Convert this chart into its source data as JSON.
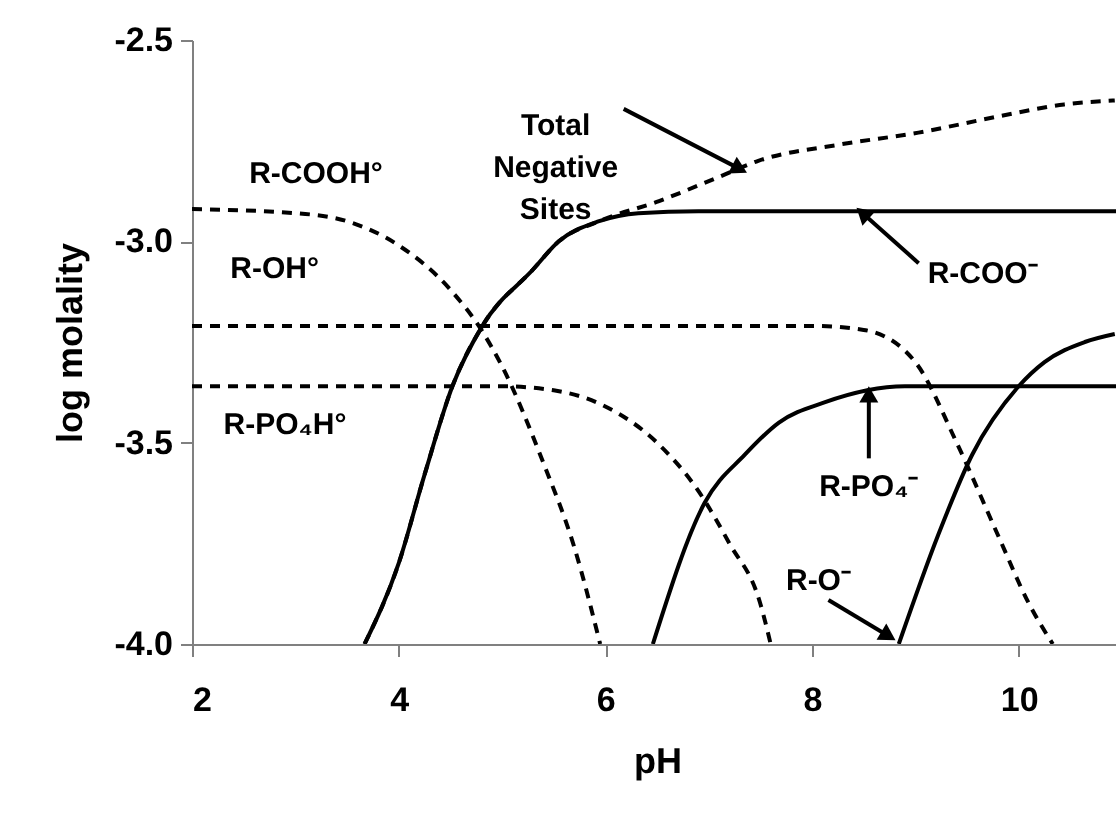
{
  "chart_data": {
    "type": "line",
    "xlabel": "pH",
    "ylabel": "log  molality",
    "xlim": [
      2,
      11
    ],
    "xticks": [
      2,
      4,
      6,
      8,
      10
    ],
    "ylim": [
      -4.0,
      -2.5
    ],
    "yticks": [
      {
        "value": -4,
        "label": "-4.0"
      },
      -3.5,
      {
        "value": -3,
        "label": "-3.0"
      },
      -2.5
    ],
    "grid": false,
    "marker": "none",
    "series": [
      {
        "color": "#000000",
        "line_style": "dashed",
        "x": [
          2,
          3,
          3.5,
          4,
          4.5,
          4.8,
          5.0,
          5.4,
          5.7,
          5.95
        ],
        "values": [
          -2.92,
          -2.93,
          -2.95,
          -3.01,
          -3.12,
          -3.22,
          -3.31,
          -3.55,
          -3.76,
          -4.0
        ]
      },
      {
        "color": "#000000",
        "line_style": "dashed",
        "x": [
          2,
          8,
          8.5,
          9.0,
          9.4,
          9.8,
          10.1,
          10.33
        ],
        "values": [
          -3.21,
          -3.21,
          -3.22,
          -3.3,
          -3.5,
          -3.73,
          -3.9,
          -4.0
        ]
      },
      {
        "color": "#000000",
        "line_style": "dashed",
        "x": [
          2,
          5,
          5.5,
          6,
          6.5,
          6.9,
          7.2,
          7.5,
          7.6
        ],
        "values": [
          -3.36,
          -3.36,
          -3.37,
          -3.41,
          -3.5,
          -3.62,
          -3.75,
          -3.9,
          -4.0
        ]
      },
      {
        "color": "#000000",
        "line_style": "solid",
        "x": [
          3.67,
          4.0,
          4.25,
          4.52,
          4.81,
          5.3,
          5.55,
          5.94,
          6.32,
          6.9,
          11
        ],
        "values": [
          -4.0,
          -3.8,
          -3.58,
          -3.36,
          -3.21,
          -3.07,
          -3.0,
          -2.95,
          -2.93,
          -2.925,
          -2.925
        ]
      },
      {
        "color": "#000000",
        "line_style": "dashed",
        "x": [
          3.67,
          4.0,
          4.25,
          4.52,
          4.81,
          5.3,
          5.55,
          5.94,
          6.52,
          7.1,
          7.48,
          8.26,
          9.03,
          9.8,
          10.44,
          10.93
        ],
        "values": [
          -4.0,
          -3.8,
          -3.58,
          -3.36,
          -3.21,
          -3.07,
          -3.0,
          -2.95,
          -2.9,
          -2.84,
          -2.8,
          -2.76,
          -2.73,
          -2.69,
          -2.66,
          -2.65
        ]
      },
      {
        "color": "#000000",
        "line_style": "solid",
        "x": [
          6.46,
          6.96,
          7.35,
          7.68,
          8.12,
          8.9,
          11
        ],
        "values": [
          -4.0,
          -3.65,
          -3.53,
          -3.45,
          -3.4,
          -3.36,
          -3.36
        ]
      },
      {
        "color": "#000000",
        "line_style": "solid",
        "x": [
          8.84,
          9.22,
          9.55,
          10.0,
          10.25,
          10.64,
          10.93
        ],
        "values": [
          -4.0,
          -3.73,
          -3.53,
          -3.36,
          -3.3,
          -3.25,
          -3.23
        ]
      }
    ],
    "annotations": [
      {
        "text": "R-COOH°",
        "x": 3.2,
        "y": -2.93
      },
      {
        "text": "R-OH°",
        "x": 2.8,
        "y": -3.21
      },
      {
        "text": "R-PO₄H°",
        "x": 2.9,
        "y": -3.36
      },
      {
        "text": "Total\nNegative\nSites",
        "x": 7.3,
        "y": -2.82
      },
      {
        "text": "R-COO⁻",
        "x": 8.49,
        "y": -2.93
      },
      {
        "text": "R-PO₄⁻",
        "x": 8.55,
        "y": -3.38
      },
      {
        "text": "R-O⁻",
        "x": 8.74,
        "y": -3.98
      }
    ]
  }
}
